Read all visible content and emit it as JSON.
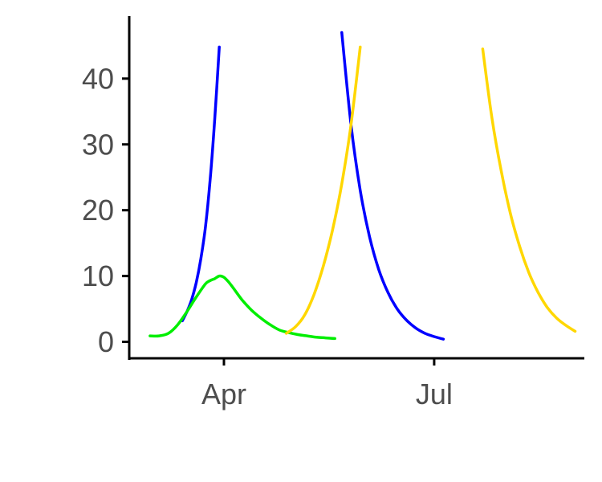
{
  "chart_data": {
    "type": "line",
    "title": "",
    "xlabel": "",
    "ylabel": "",
    "xlim": [
      "2021-02-19",
      "2021-09-04"
    ],
    "ylim": [
      -2.5,
      49.5
    ],
    "grid": false,
    "legend": "none",
    "x_ticks": [
      {
        "label": "Apr",
        "date": "2021-04-01"
      },
      {
        "label": "Jul",
        "date": "2021-07-01"
      }
    ],
    "y_ticks": [
      0,
      10,
      20,
      30,
      40
    ],
    "series": [
      {
        "color": "#0000ff",
        "x": [
          "2021-03-14",
          "2021-03-16",
          "2021-03-18",
          "2021-03-20",
          "2021-03-22",
          "2021-03-24",
          "2021-03-26",
          "2021-03-28",
          "2021-03-30"
        ],
        "y": [
          3.2,
          4.6,
          6.4,
          9.0,
          12.6,
          17.5,
          24.5,
          33.8,
          44.8
        ]
      },
      {
        "color": "#0000ff",
        "x": [
          "2021-05-22",
          "2021-05-26",
          "2021-05-30",
          "2021-06-03",
          "2021-06-07",
          "2021-06-11",
          "2021-06-15",
          "2021-06-19",
          "2021-06-23",
          "2021-06-27",
          "2021-07-01",
          "2021-07-05"
        ],
        "y": [
          47.0,
          33.0,
          23.0,
          16.0,
          11.0,
          7.5,
          5.0,
          3.3,
          2.1,
          1.3,
          0.8,
          0.4
        ]
      },
      {
        "color": "#00ee00",
        "x": [
          "2021-02-28",
          "2021-03-04",
          "2021-03-08",
          "2021-03-12",
          "2021-03-16",
          "2021-03-20",
          "2021-03-24",
          "2021-03-26",
          "2021-03-28",
          "2021-03-30",
          "2021-04-01",
          "2021-04-03",
          "2021-04-05",
          "2021-04-09",
          "2021-04-13",
          "2021-04-17",
          "2021-04-21",
          "2021-04-25",
          "2021-04-29",
          "2021-05-03",
          "2021-05-07",
          "2021-05-11",
          "2021-05-15",
          "2021-05-19"
        ],
        "y": [
          0.9,
          0.9,
          1.3,
          2.6,
          4.6,
          6.8,
          8.8,
          9.3,
          9.6,
          10.0,
          9.8,
          9.1,
          8.2,
          6.3,
          4.8,
          3.6,
          2.6,
          1.8,
          1.4,
          1.1,
          0.9,
          0.7,
          0.6,
          0.5
        ]
      },
      {
        "color": "#ffd700",
        "x": [
          "2021-04-28",
          "2021-05-02",
          "2021-05-06",
          "2021-05-10",
          "2021-05-14",
          "2021-05-18",
          "2021-05-22",
          "2021-05-26",
          "2021-05-30"
        ],
        "y": [
          1.3,
          2.3,
          4.1,
          7.2,
          11.5,
          17.0,
          24.0,
          33.0,
          44.8
        ]
      },
      {
        "color": "#ffd700",
        "x": [
          "2021-07-22",
          "2021-07-26",
          "2021-07-30",
          "2021-08-03",
          "2021-08-07",
          "2021-08-11",
          "2021-08-15",
          "2021-08-19",
          "2021-08-23",
          "2021-08-27",
          "2021-08-31"
        ],
        "y": [
          44.5,
          34.0,
          26.0,
          19.5,
          14.5,
          10.5,
          7.5,
          5.2,
          3.6,
          2.5,
          1.6
        ]
      }
    ]
  }
}
